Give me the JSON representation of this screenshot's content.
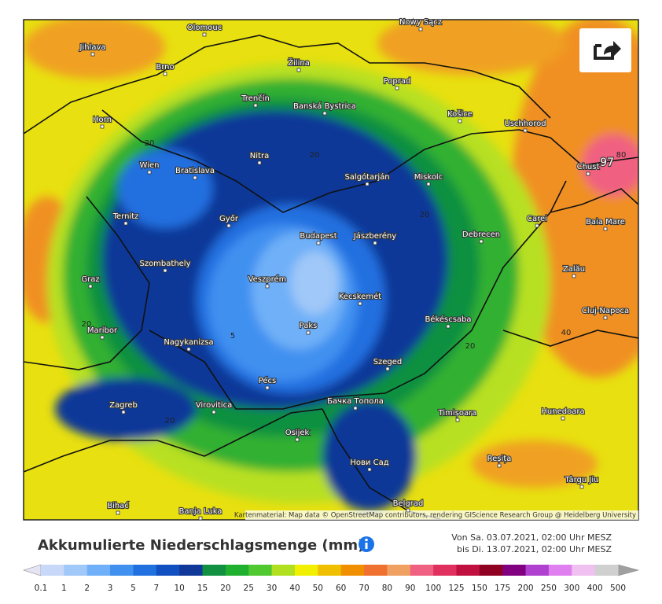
{
  "map": {
    "cities": [
      "Olomouc",
      "Jihlava",
      "Brno",
      "Žilina",
      "Nowy Sącz",
      "Poprad",
      "Trenčín",
      "Banská Bystrica",
      "Košice",
      "Uschhorod",
      "Horn",
      "Wien",
      "Bratislava",
      "Nitra",
      "Salgótarján",
      "Miskolc",
      "Chust",
      "Ternitz",
      "Győr",
      "Budapest",
      "Jászberény",
      "Debrecen",
      "Carei",
      "Baia Mare",
      "Szombathely",
      "Graz",
      "Veszprém",
      "Kecskemét",
      "Zalău",
      "Cluj-Napoca",
      "Paks",
      "Békéscsaba",
      "Maribor",
      "Nagykanizsa",
      "Szeged",
      "Pécs",
      "Бачка Топола",
      "Zagreb",
      "Virovitica",
      "Timișoara",
      "Hunedoara",
      "Osijek",
      "Нови Сад",
      "Reșița",
      "Târgu Jiu",
      "Bihać",
      "Banja Luka",
      "Belgrad"
    ],
    "contour_labels": [
      "97",
      "80",
      "20",
      "20",
      "20",
      "20",
      "5",
      "20",
      "40",
      "20"
    ],
    "attribution": "Kartenmaterial: Map data © OpenStreetMap contributors, rendering GIScience Research Group @ Heidelberg University"
  },
  "legend": {
    "title": "Akkumulierte Niederschlagsmenge (mm)",
    "period_from": "Von Sa. 03.07.2021, 02:00 Uhr MESZ",
    "period_to": "bis Di. 13.07.2021, 02:00 Uhr MESZ",
    "ticks": [
      0.1,
      1,
      2,
      3,
      5,
      7,
      10,
      15,
      20,
      25,
      30,
      40,
      50,
      60,
      70,
      80,
      90,
      100,
      125,
      150,
      175,
      200,
      250,
      300,
      400,
      500
    ],
    "colors": [
      "#c8d8f8",
      "#a0c8f8",
      "#70b0f8",
      "#4090f0",
      "#2070e0",
      "#1050c0",
      "#103898",
      "#109040",
      "#20b030",
      "#50c830",
      "#b0e020",
      "#f0f000",
      "#f0c000",
      "#f09000",
      "#f07030",
      "#f0a060",
      "#f06080",
      "#e03060",
      "#c01040",
      "#900020",
      "#800080",
      "#b040d0",
      "#e080f0",
      "#f0c0f0",
      "#d0d0d0"
    ],
    "low_color": "#e4e4f4",
    "high_color": "#a0a0a0"
  }
}
